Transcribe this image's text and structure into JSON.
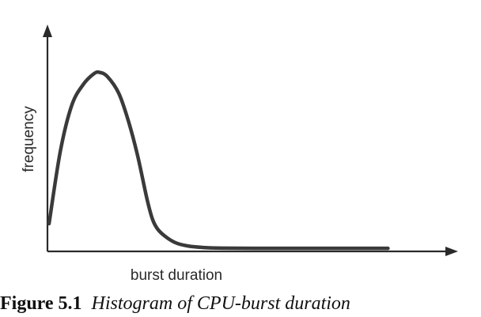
{
  "chart_data": {
    "type": "line",
    "title": "",
    "xlabel": "burst duration",
    "ylabel": "frequency",
    "x_ticks": "none",
    "y_ticks": "none",
    "grid": false,
    "legend": "none",
    "xlim": [
      0,
      1
    ],
    "ylim": [
      0,
      1
    ],
    "series": [
      {
        "x": [
          0.0,
          0.03,
          0.06,
          0.09,
          0.12,
          0.135,
          0.155,
          0.185,
          0.21,
          0.235,
          0.26,
          0.275,
          0.29,
          0.315,
          0.34,
          0.37,
          0.41,
          0.46,
          0.55,
          0.7,
          0.86,
          0.9
        ],
        "y": [
          0.13,
          0.48,
          0.7,
          0.8,
          0.855,
          0.86,
          0.84,
          0.76,
          0.63,
          0.46,
          0.25,
          0.15,
          0.1,
          0.06,
          0.035,
          0.022,
          0.015,
          0.012,
          0.011,
          0.011,
          0.011,
          0.011
        ]
      }
    ],
    "colors": {
      "line": "#3a3a3a",
      "axis": "#2a2a2a"
    }
  },
  "caption": {
    "number": "Figure 5.1",
    "text": "Histogram of CPU-burst duration"
  }
}
